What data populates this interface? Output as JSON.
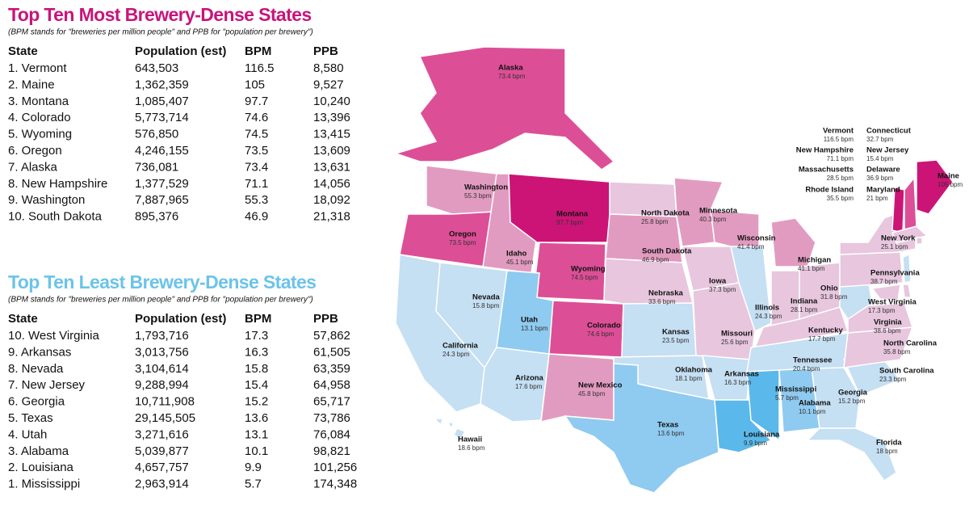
{
  "most": {
    "title": "Top Ten Most Brewery-Dense States",
    "subtitle": "(BPM stands for \"breweries per million people\" and PPB for \"population per brewery\")",
    "header": [
      "State",
      "Population (est)",
      "BPM",
      "PPB"
    ],
    "rows": [
      [
        "1. Vermont",
        "643,503",
        "116.5",
        "8,580"
      ],
      [
        "2. Maine",
        "1,362,359",
        "105",
        "9,527"
      ],
      [
        "3. Montana",
        "1,085,407",
        "97.7",
        "10,240"
      ],
      [
        "4. Colorado",
        "5,773,714",
        "74.6",
        "13,396"
      ],
      [
        "5. Wyoming",
        "576,850",
        "74.5",
        "13,415"
      ],
      [
        "6. Oregon",
        "4,246,155",
        "73.5",
        "13,609"
      ],
      [
        "7. Alaska",
        "736,081",
        "73.4",
        "13,631"
      ],
      [
        "8. New Hampshire",
        "1,377,529",
        "71.1",
        "14,056"
      ],
      [
        "9. Washington",
        "7,887,965",
        "55.3",
        "18,092"
      ],
      [
        "10. South Dakota",
        "895,376",
        "46.9",
        "21,318"
      ]
    ]
  },
  "least": {
    "title": "Top Ten Least Brewery-Dense States",
    "subtitle": "(BPM stands for \"breweries per million people\" and PPB for \"population per brewery\")",
    "header": [
      "State",
      "Population (est)",
      "BPM",
      "PPB"
    ],
    "rows": [
      [
        "10. West Virginia",
        "1,793,716",
        "17.3",
        "57,862"
      ],
      [
        "9. Arkansas",
        "3,013,756",
        "16.3",
        "61,505"
      ],
      [
        "8. Nevada",
        "3,104,614",
        "15.8",
        "63,359"
      ],
      [
        "7. New Jersey",
        "9,288,994",
        "15.4",
        "64,958"
      ],
      [
        "6. Georgia",
        "10,711,908",
        "15.2",
        "65,717"
      ],
      [
        "5. Texas",
        "29,145,505",
        "13.6",
        "73,786"
      ],
      [
        "4. Utah",
        "3,271,616",
        "13.1",
        "76,084"
      ],
      [
        "3. Alabama",
        "5,039,877",
        "10.1",
        "98,821"
      ],
      [
        "2. Louisiana",
        "4,657,757",
        "9.9",
        "101,256"
      ],
      [
        "1. Mississippi",
        "2,963,914",
        "5.7",
        "174,348"
      ]
    ]
  },
  "map": {
    "states": [
      {
        "name": "Alaska",
        "label": "73.4 bpm",
        "color": "#dc4f96"
      },
      {
        "name": "Washington",
        "label": "55.3 bpm",
        "color": "#e29bc0"
      },
      {
        "name": "Oregon",
        "label": "73.5 bpm",
        "color": "#dc4f96"
      },
      {
        "name": "California",
        "label": "24.3 bpm",
        "color": "#c5dff3"
      },
      {
        "name": "Nevada",
        "label": "15.8 bpm",
        "color": "#c5dff3"
      },
      {
        "name": "Idaho",
        "label": "45.1 bpm",
        "color": "#e29bc0"
      },
      {
        "name": "Montana",
        "label": "97.7 bpm",
        "color": "#cc1476"
      },
      {
        "name": "Wyoming",
        "label": "74.5 bpm",
        "color": "#dc4f96"
      },
      {
        "name": "Utah",
        "label": "13.1 bpm",
        "color": "#8fcaf0"
      },
      {
        "name": "Colorado",
        "label": "74.6 bpm",
        "color": "#dc4f96"
      },
      {
        "name": "Arizona",
        "label": "17.6 bpm",
        "color": "#c5dff3"
      },
      {
        "name": "New Mexico",
        "label": "45.8 bpm",
        "color": "#e29bc0"
      },
      {
        "name": "North Dakota",
        "label": "25.8 bpm",
        "color": "#e7c6de"
      },
      {
        "name": "South Dakota",
        "label": "46.9 bpm",
        "color": "#e29bc0"
      },
      {
        "name": "Nebraska",
        "label": "33.6 bpm",
        "color": "#e7c6de"
      },
      {
        "name": "Kansas",
        "label": "23.5 bpm",
        "color": "#c5dff3"
      },
      {
        "name": "Oklahoma",
        "label": "18.1 bpm",
        "color": "#c5dff3"
      },
      {
        "name": "Texas",
        "label": "13.6 bpm",
        "color": "#8fcaf0"
      },
      {
        "name": "Minnesota",
        "label": "40.3 bpm",
        "color": "#e29bc0"
      },
      {
        "name": "Iowa",
        "label": "37.3 bpm",
        "color": "#e7c6de"
      },
      {
        "name": "Missouri",
        "label": "25.6 bpm",
        "color": "#e7c6de"
      },
      {
        "name": "Arkansas",
        "label": "16.3 bpm",
        "color": "#c5dff3"
      },
      {
        "name": "Louisiana",
        "label": "9.9 bpm",
        "color": "#5bb8ea"
      },
      {
        "name": "Wisconsin",
        "label": "41.4 bpm",
        "color": "#e29bc0"
      },
      {
        "name": "Illinois",
        "label": "24.3 bpm",
        "color": "#c5dff3"
      },
      {
        "name": "Michigan",
        "label": "41.1 bpm",
        "color": "#e29bc0"
      },
      {
        "name": "Indiana",
        "label": "28.1 bpm",
        "color": "#e7c6de"
      },
      {
        "name": "Ohio",
        "label": "31.8 bpm",
        "color": "#e7c6de"
      },
      {
        "name": "Kentucky",
        "label": "17.7 bpm",
        "color": "#e7c6de"
      },
      {
        "name": "Tennessee",
        "label": "20.4 bpm",
        "color": "#c5dff3"
      },
      {
        "name": "Mississippi",
        "label": "5.7 bpm",
        "color": "#5bb8ea"
      },
      {
        "name": "Alabama",
        "label": "10.1 bpm",
        "color": "#8fcaf0"
      },
      {
        "name": "Georgia",
        "label": "15.2 bpm",
        "color": "#c5dff3"
      },
      {
        "name": "Florida",
        "label": "18 bpm",
        "color": "#c5dff3"
      },
      {
        "name": "South Carolina",
        "label": "23.3 bpm",
        "color": "#c5dff3"
      },
      {
        "name": "North Carolina",
        "label": "35.8 bpm",
        "color": "#e7c6de"
      },
      {
        "name": "Virginia",
        "label": "38.6 bpm",
        "color": "#e7c6de"
      },
      {
        "name": "West Virginia",
        "label": "17.3 bpm",
        "color": "#c5dff3"
      },
      {
        "name": "Pennsylvania",
        "label": "38.7 bpm",
        "color": "#e7c6de"
      },
      {
        "name": "New York",
        "label": "25.1 bpm",
        "color": "#e7c6de"
      },
      {
        "name": "Maine",
        "label": "105 bpm",
        "color": "#cc1476"
      },
      {
        "name": "Hawaii",
        "label": "18.6 bpm",
        "color": "#c5dff3"
      },
      {
        "name": "Vermont",
        "label": "116.5 bpm",
        "color": "#cc1476"
      },
      {
        "name": "New Hampshire",
        "label": "71.1 bpm",
        "color": "#dc4f96"
      },
      {
        "name": "Massachusetts",
        "label": "28.5 bpm",
        "color": "#e7c6de"
      },
      {
        "name": "Rhode Island",
        "label": "35.5 bpm",
        "color": "#e7c6de"
      },
      {
        "name": "Connecticut",
        "label": "32.7 bpm",
        "color": "#e7c6de"
      },
      {
        "name": "New Jersey",
        "label": "15.4 bpm",
        "color": "#c5dff3"
      },
      {
        "name": "Delaware",
        "label": "36.9 bpm",
        "color": "#e7c6de"
      },
      {
        "name": "Maryland",
        "label": "21 bpm",
        "color": "#e7c6de"
      }
    ]
  }
}
